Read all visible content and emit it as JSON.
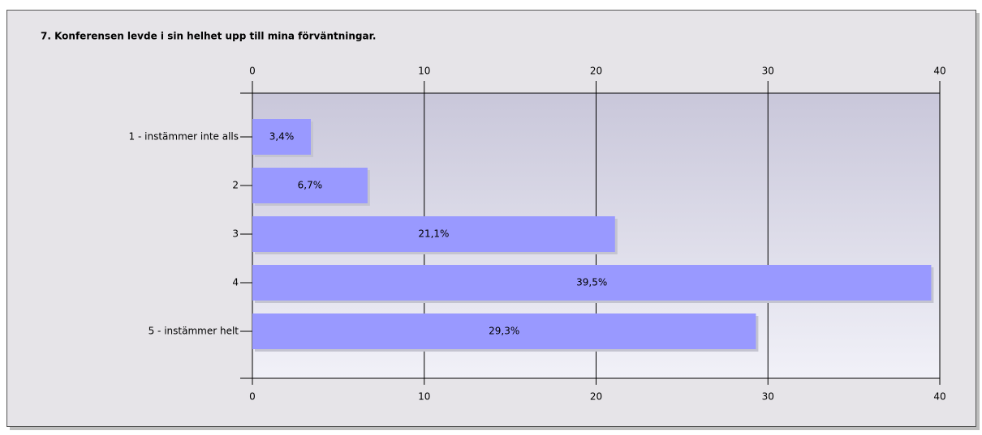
{
  "chart_data": {
    "type": "barh",
    "title": "7. Konferensen levde i sin helhet upp till mina förväntningar.",
    "categories": [
      "1 - instämmer inte alls",
      "2",
      "3",
      "4",
      "5 - instämmer helt"
    ],
    "values": [
      3.4,
      6.7,
      21.1,
      39.5,
      29.3
    ],
    "value_labels": [
      "3,4%",
      "6,7%",
      "21,1%",
      "39,5%",
      "29,3%"
    ],
    "color": "#9999ff",
    "xlim": [
      0,
      40
    ],
    "xticks": [
      0,
      10,
      20,
      30,
      40
    ],
    "grid": true
  }
}
